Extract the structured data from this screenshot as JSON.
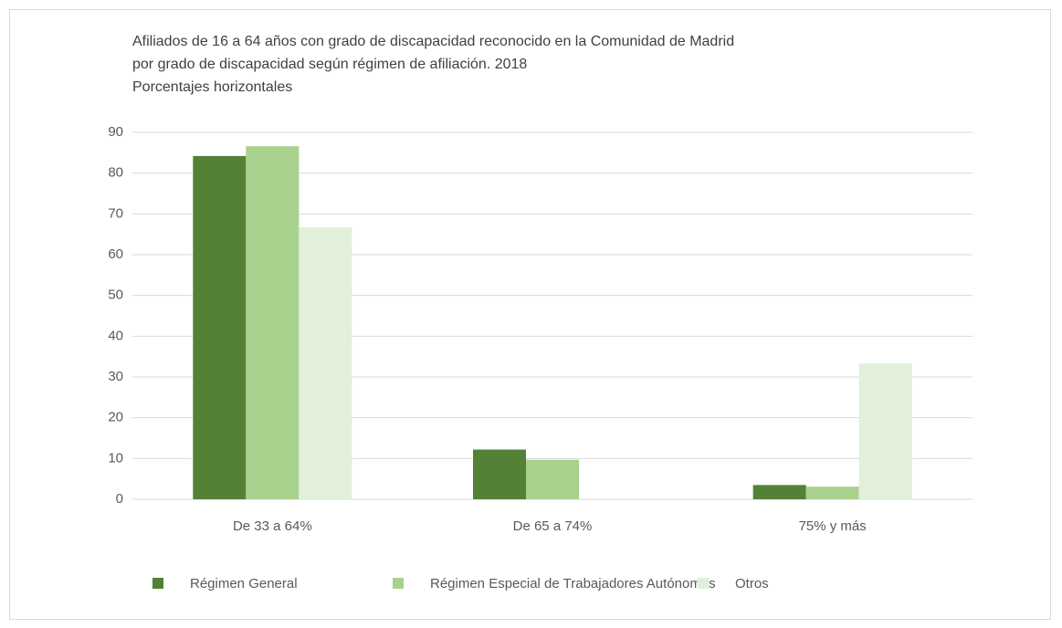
{
  "chart_data": {
    "type": "bar",
    "title": [
      "Afiliados de 16 a 64 años con grado de discapacidad reconocido en la Comunidad de Madrid",
      "por grado de discapacidad según régimen de afiliación. 2018"
    ],
    "subtitle": "Porcentajes horizontales",
    "categories": [
      "De 33 a 64%",
      "De 65 a 74%",
      "75% y más"
    ],
    "series": [
      {
        "name": "Régimen General",
        "color": "#538135",
        "values": [
          84.2,
          12.2,
          3.5
        ]
      },
      {
        "name": "Régimen Especial de Trabajadores Autónomos",
        "color": "#a9d18e",
        "values": [
          86.6,
          9.7,
          3.1
        ]
      },
      {
        "name": "Otros",
        "color": "#e2efda",
        "values": [
          66.7,
          0,
          33.3
        ]
      }
    ],
    "ylim": [
      0,
      90
    ],
    "yticks": [
      0,
      10,
      20,
      30,
      40,
      50,
      60,
      70,
      80,
      90
    ],
    "grid": true,
    "legend": "bottom"
  }
}
